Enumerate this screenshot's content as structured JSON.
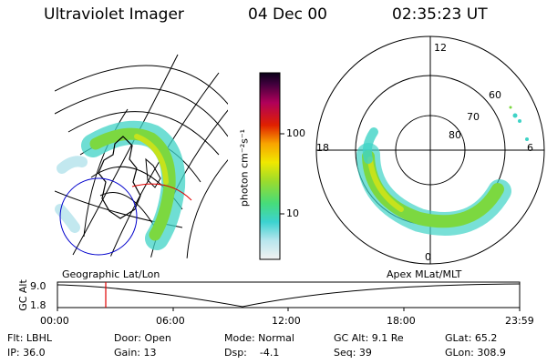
{
  "header": {
    "title": "Ultraviolet Imager",
    "date": "04 Dec 00",
    "time": "02:35:23 UT"
  },
  "left_panel": {
    "label": "Geographic Lat/Lon"
  },
  "colorbar": {
    "unit_label": "photon cm⁻²s⁻¹",
    "ticks": [
      "100",
      "10"
    ]
  },
  "right_panel": {
    "label": "Apex MLat/MLT",
    "mlt_labels": [
      "12",
      "18",
      "6",
      "0"
    ],
    "lat_labels": [
      "60",
      "70",
      "80"
    ]
  },
  "altitude_plot": {
    "ylabel": "GC Alt",
    "ymax": "9.0",
    "ymin": "1.8",
    "xticks": [
      "00:00",
      "06:00",
      "12:00",
      "18:00",
      "23:59"
    ],
    "marker_color": "#e00000"
  },
  "status": {
    "flt": "Flt: LBHL",
    "door": "Door: Open",
    "mode": "Mode: Normal",
    "gc_alt": "GC Alt: 9.1 Re",
    "glat": "GLat:  65.2",
    "ip": "IP: 36.0",
    "gain": "Gain: 13",
    "dsp": "Dsp:    -4.1",
    "seq": "Seq: 39",
    "glon": "GLon: 308.9"
  }
}
